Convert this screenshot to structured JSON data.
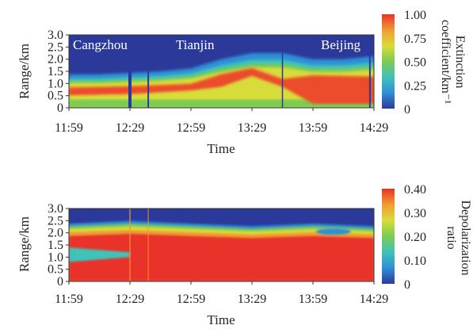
{
  "chart_data": [
    {
      "type": "heatmap",
      "quantity": "extinction",
      "xlabel": "Time",
      "ylabel": "Range/km",
      "x_ticks": [
        "11:59",
        "12:29",
        "12:59",
        "13:29",
        "13:59",
        "14:29"
      ],
      "y_ticks": [
        "0",
        "0.5",
        "1.0",
        "1.5",
        "2.0",
        "2.5",
        "3.0"
      ],
      "xlim": [
        "11:59",
        "14:29"
      ],
      "ylim": [
        0,
        3.0
      ],
      "annotations": [
        "Cangzhou",
        "Tianjin",
        "Beijing"
      ],
      "colorbar": {
        "label_lines": [
          "Extinction",
          "coefficient/km⁻¹"
        ],
        "ticks": [
          "1.00",
          "0.75",
          "0.50",
          "0.25",
          "0"
        ],
        "range": [
          0,
          1.0
        ]
      },
      "colormap": [
        "#2b3a9a",
        "#2f8fd6",
        "#3fc2b8",
        "#7ccb52",
        "#d8dc3a",
        "#f39a32",
        "#e8322a"
      ],
      "layer_top_km": [
        [
          "11:59",
          1.1
        ],
        [
          "12:14",
          1.1
        ],
        [
          "12:29",
          1.15
        ],
        [
          "12:44",
          1.2
        ],
        [
          "12:59",
          1.3
        ],
        [
          "13:14",
          1.6
        ],
        [
          "13:29",
          1.8
        ],
        [
          "13:44",
          1.8
        ],
        [
          "13:59",
          1.6
        ],
        [
          "14:14",
          1.6
        ],
        [
          "14:29",
          1.7
        ]
      ],
      "core_band_km": [
        [
          "11:59",
          0.55,
          0.85
        ],
        [
          "12:29",
          0.6,
          0.9
        ],
        [
          "12:59",
          0.75,
          1.0
        ],
        [
          "13:14",
          0.9,
          1.4
        ],
        [
          "13:29",
          1.35,
          1.65
        ],
        [
          "13:44",
          0.9,
          1.2
        ],
        [
          "13:59",
          0.2,
          1.35
        ],
        [
          "14:29",
          0.2,
          1.3
        ]
      ]
    },
    {
      "type": "heatmap",
      "quantity": "depolarization",
      "xlabel": "Time",
      "ylabel": "Range/km",
      "x_ticks": [
        "11:59",
        "12:29",
        "12:59",
        "13:29",
        "13:59",
        "14:29"
      ],
      "y_ticks": [
        "0",
        "0.5",
        "1.0",
        "1.5",
        "2.0",
        "2.5",
        "3.0"
      ],
      "xlim": [
        "11:59",
        "14:29"
      ],
      "ylim": [
        0,
        3.0
      ],
      "colorbar": {
        "label_lines": [
          "Depolarization",
          "ratio"
        ],
        "ticks": [
          "0.40",
          "0.30",
          "0.20",
          "0.10",
          "0"
        ],
        "range": [
          0,
          0.4
        ]
      },
      "colormap": [
        "#2b3a9a",
        "#2f8fd6",
        "#3fc2b8",
        "#7ccb52",
        "#d8dc3a",
        "#f39a32",
        "#e8322a"
      ],
      "layer_top_km": [
        [
          "11:59",
          2.2
        ],
        [
          "12:29",
          2.3
        ],
        [
          "12:59",
          2.2
        ],
        [
          "13:29",
          2.1
        ],
        [
          "13:59",
          2.2
        ],
        [
          "14:29",
          2.1
        ]
      ],
      "low_ratio_pocket_km": [
        [
          "11:59",
          0.8,
          1.4
        ],
        [
          "12:14",
          0.9,
          1.3
        ],
        [
          "12:29",
          1.0,
          1.2
        ]
      ]
    }
  ]
}
